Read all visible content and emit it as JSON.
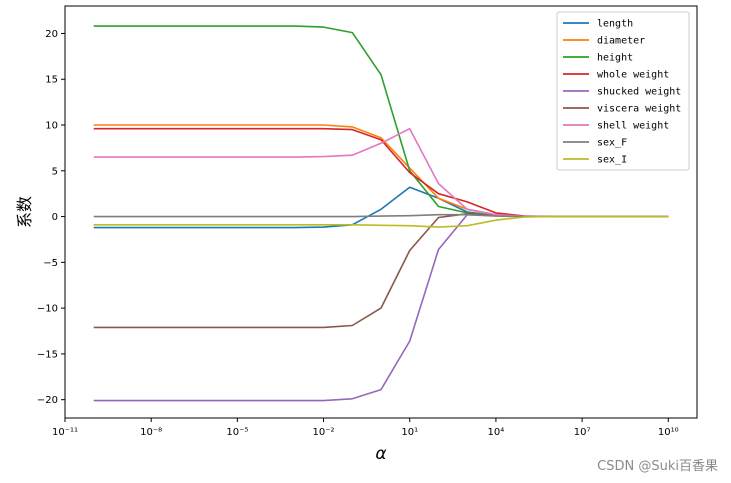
{
  "chart_data": {
    "type": "line",
    "title": "",
    "xlabel": "α",
    "ylabel": "系数",
    "xscale": "log",
    "xlim_log10": [
      -11,
      11
    ],
    "ylim": [
      -22,
      23
    ],
    "x_tick_labels": [
      {
        "exp": -11,
        "label": "10⁻¹¹"
      },
      {
        "exp": -8,
        "label": "10⁻⁸"
      },
      {
        "exp": -5,
        "label": "10⁻⁵"
      },
      {
        "exp": -2,
        "label": "10⁻²"
      },
      {
        "exp": 1,
        "label": "10¹"
      },
      {
        "exp": 4,
        "label": "10⁴"
      },
      {
        "exp": 7,
        "label": "10⁷"
      },
      {
        "exp": 10,
        "label": "10¹⁰"
      }
    ],
    "y_ticks": [
      -20,
      -15,
      -10,
      -5,
      0,
      5,
      10,
      15,
      20
    ],
    "x_log10": [
      -10,
      -9,
      -8,
      -7,
      -6,
      -5,
      -4,
      -3,
      -2,
      -1,
      0,
      1,
      2,
      3,
      4,
      5,
      6,
      7,
      8,
      9,
      10
    ],
    "series": [
      {
        "name": "length",
        "color": "#1f77b4",
        "values": [
          -1.2,
          -1.2,
          -1.2,
          -1.2,
          -1.2,
          -1.2,
          -1.2,
          -1.2,
          -1.15,
          -0.9,
          0.8,
          3.2,
          2.0,
          0.5,
          0.1,
          0.02,
          0,
          0,
          0,
          0,
          0
        ]
      },
      {
        "name": "diameter",
        "color": "#ff7f0e",
        "values": [
          10.0,
          10.0,
          10.0,
          10.0,
          10.0,
          10.0,
          10.0,
          10.0,
          10.0,
          9.8,
          8.6,
          5.3,
          2.0,
          0.8,
          0.2,
          0.03,
          0,
          0,
          0,
          0,
          0
        ]
      },
      {
        "name": "height",
        "color": "#2ca02c",
        "values": [
          20.8,
          20.8,
          20.8,
          20.8,
          20.8,
          20.8,
          20.8,
          20.8,
          20.7,
          20.1,
          15.5,
          5.0,
          1.1,
          0.4,
          0.1,
          0.02,
          0,
          0,
          0,
          0,
          0
        ]
      },
      {
        "name": "whole weight",
        "color": "#d62728",
        "values": [
          9.6,
          9.6,
          9.6,
          9.6,
          9.6,
          9.6,
          9.6,
          9.6,
          9.6,
          9.5,
          8.4,
          4.8,
          2.5,
          1.6,
          0.4,
          0.05,
          0,
          0,
          0,
          0,
          0
        ]
      },
      {
        "name": "shucked weight",
        "color": "#9467bd",
        "values": [
          -20.1,
          -20.1,
          -20.1,
          -20.1,
          -20.1,
          -20.1,
          -20.1,
          -20.1,
          -20.1,
          -19.9,
          -18.9,
          -13.6,
          -3.6,
          0.2,
          0.1,
          0.01,
          0,
          0,
          0,
          0,
          0
        ]
      },
      {
        "name": "viscera weight",
        "color": "#8c564b",
        "values": [
          -12.1,
          -12.1,
          -12.1,
          -12.1,
          -12.1,
          -12.1,
          -12.1,
          -12.1,
          -12.1,
          -11.9,
          -10.0,
          -3.7,
          -0.1,
          0.3,
          0.1,
          0.01,
          0,
          0,
          0,
          0,
          0
        ]
      },
      {
        "name": "shell weight",
        "color": "#e377c2",
        "values": [
          6.5,
          6.5,
          6.5,
          6.5,
          6.5,
          6.5,
          6.5,
          6.5,
          6.55,
          6.7,
          8.0,
          9.6,
          3.6,
          0.8,
          0.2,
          0.03,
          0,
          0,
          0,
          0,
          0
        ]
      },
      {
        "name": "sex_F",
        "color": "#7f7f7f",
        "values": [
          0,
          0,
          0,
          0,
          0,
          0,
          0,
          0,
          0,
          0,
          0.05,
          0.1,
          0.2,
          0.2,
          0.05,
          0.01,
          0,
          0,
          0,
          0,
          0
        ]
      },
      {
        "name": "sex_I",
        "color": "#bcbd22",
        "values": [
          -0.9,
          -0.9,
          -0.9,
          -0.9,
          -0.9,
          -0.9,
          -0.9,
          -0.9,
          -0.9,
          -0.9,
          -0.95,
          -1.0,
          -1.15,
          -1.0,
          -0.4,
          -0.05,
          0,
          0,
          0,
          0,
          0
        ]
      }
    ],
    "legend": {
      "placement": "top-right"
    },
    "grid": false
  },
  "watermark": "CSDN @Suki百香果"
}
